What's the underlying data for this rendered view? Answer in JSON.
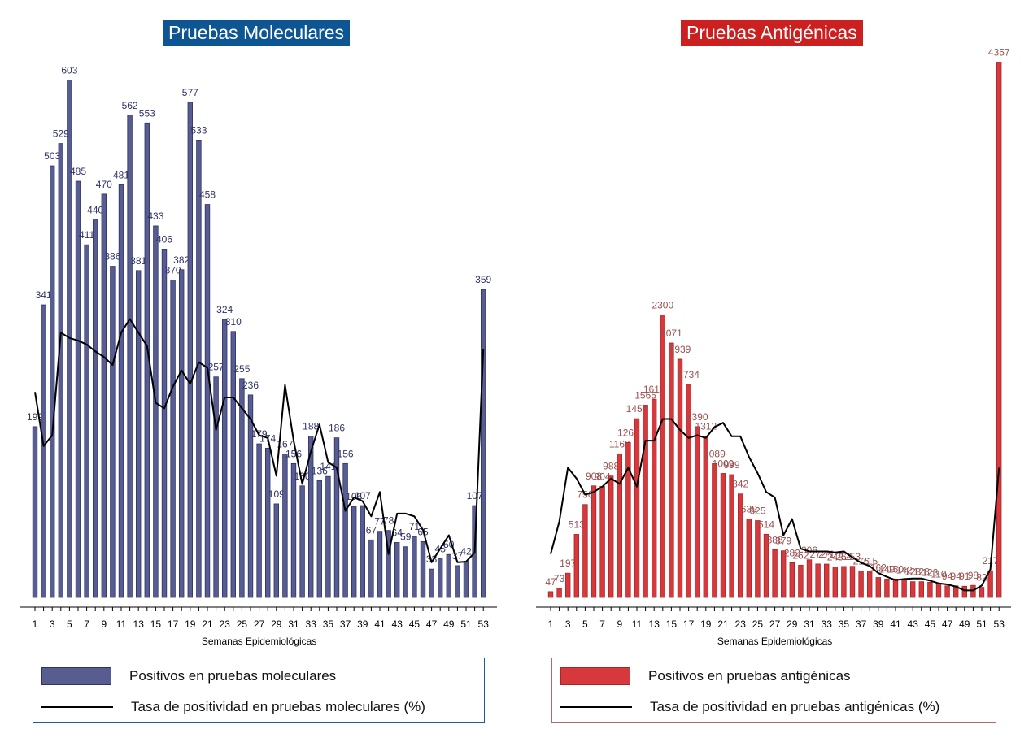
{
  "charts": [
    {
      "id": "molecular",
      "title": "Pruebas Moleculares",
      "title_bg": "#0d5593",
      "bar_color": "#575c91",
      "bar_border": "#2e3268",
      "label_color": "#2e3268",
      "legend_border": "#1f5b9a",
      "legend": {
        "bars": "Positivos en pruebas moleculares",
        "line": "Tasa de positividad en pruebas moleculares (%)"
      }
    },
    {
      "id": "antigen",
      "title": "Pruebas Antigénicas",
      "title_bg": "#cc1f1f",
      "bar_color": "#d7383c",
      "bar_border": "#a82528",
      "label_color": "#9b5150",
      "legend_border": "#b56a6a",
      "legend": {
        "bars": "Positivos en pruebas antigénicas",
        "line": "Tasa de positividad en pruebas antigénicas (%)"
      }
    }
  ],
  "chart_data": [
    {
      "type": "bar",
      "title": "Pruebas Moleculares",
      "xlabel": "Semanas Epidemiológicas",
      "ylabel": "",
      "x_ticks": [
        "1",
        "3",
        "5",
        "7",
        "9",
        "11",
        "13",
        "15",
        "17",
        "19",
        "21",
        "23",
        "25",
        "27",
        "29",
        "31",
        "33",
        "35",
        "37",
        "39",
        "41",
        "43",
        "45",
        "47",
        "49",
        "51",
        "53"
      ],
      "categories": [
        1,
        2,
        3,
        4,
        5,
        6,
        7,
        8,
        9,
        10,
        11,
        12,
        13,
        14,
        15,
        16,
        17,
        18,
        19,
        20,
        21,
        22,
        23,
        24,
        25,
        26,
        27,
        28,
        29,
        30,
        31,
        32,
        33,
        34,
        35,
        36,
        37,
        38,
        39,
        40,
        41,
        42,
        43,
        44,
        45,
        46,
        47,
        48,
        49,
        50,
        51,
        52,
        53
      ],
      "ylim": [
        0,
        630
      ],
      "grid": false,
      "legend_position": "bottom",
      "series": [
        {
          "name": "Positivos en pruebas moleculares",
          "type": "bar",
          "values": [
            199,
            341,
            503,
            529,
            603,
            485,
            411,
            440,
            470,
            386,
            481,
            562,
            381,
            553,
            433,
            406,
            370,
            382,
            577,
            533,
            458,
            257,
            324,
            310,
            255,
            236,
            179,
            174,
            109,
            167,
            156,
            130,
            188,
            136,
            141,
            186,
            156,
            106,
            107,
            67,
            77,
            78,
            64,
            59,
            71,
            65,
            33,
            45,
            50,
            37,
            42,
            107,
            359
          ]
        },
        {
          "name": "Tasa de positividad en pruebas moleculares (%)",
          "type": "line",
          "ylim": [
            0,
            100
          ],
          "values": [
            38,
            28,
            30,
            49,
            48,
            47.5,
            46.8,
            45.5,
            44.5,
            43,
            49,
            51.5,
            49,
            46.5,
            36,
            35,
            39,
            42,
            39.5,
            43.5,
            42.5,
            31,
            37,
            37,
            35,
            33,
            30,
            29.5,
            22.5,
            39.3,
            29,
            21,
            27,
            32,
            25,
            24,
            16,
            18.5,
            17.8,
            15,
            19.5,
            8,
            15.5,
            15.5,
            15,
            12.5,
            6.5,
            9,
            11.5,
            6.5,
            6.6,
            8.3,
            46
          ]
        }
      ]
    },
    {
      "type": "bar",
      "title": "Pruebas Antigénicas",
      "xlabel": "Semanas Epidemiológicas",
      "ylabel": "",
      "x_ticks": [
        "1",
        "3",
        "5",
        "7",
        "9",
        "11",
        "13",
        "15",
        "17",
        "19",
        "21",
        "23",
        "25",
        "27",
        "29",
        "31",
        "33",
        "35",
        "37",
        "39",
        "41",
        "43",
        "45",
        "47",
        "49",
        "51",
        "53"
      ],
      "categories": [
        1,
        2,
        3,
        4,
        5,
        6,
        7,
        8,
        9,
        10,
        11,
        12,
        13,
        14,
        15,
        16,
        17,
        18,
        19,
        20,
        21,
        22,
        23,
        24,
        25,
        26,
        27,
        28,
        29,
        30,
        31,
        32,
        33,
        34,
        35,
        36,
        37,
        38,
        39,
        40,
        41,
        42,
        43,
        44,
        45,
        46,
        47,
        48,
        49,
        50,
        51,
        52,
        53
      ],
      "ylim": [
        0,
        4400
      ],
      "grid": false,
      "legend_position": "bottom",
      "series": [
        {
          "name": "Positivos en pruebas antigénicas",
          "type": "bar",
          "values": [
            47,
            73,
            197,
            513,
            756,
            908,
            904,
            988,
            1169,
            1261,
            1455,
            1565,
            1613,
            2300,
            2071,
            1939,
            1734,
            1390,
            1312,
            1089,
            1009,
            999,
            842,
            639,
            625,
            514,
            388,
            379,
            282,
            262,
            306,
            272,
            271,
            248,
            252,
            253,
            216,
            215,
            162,
            149,
            150,
            142,
            128,
            128,
            123,
            110,
            94,
            94,
            91,
            98,
            82,
            217,
            4357
          ]
        },
        {
          "name": "Tasa de positividad en pruebas antigénicas (%)",
          "type": "line",
          "ylim": [
            0,
            100
          ],
          "values": [
            8,
            14,
            24,
            22,
            19,
            19.5,
            20.5,
            22,
            21,
            24,
            20.5,
            29,
            29,
            33,
            33,
            31,
            29.5,
            30,
            29.5,
            31.5,
            32.3,
            29.8,
            29.8,
            26,
            23,
            19.5,
            18.5,
            11.5,
            14.5,
            9,
            8.5,
            8.5,
            8.5,
            8.3,
            8.5,
            7.4,
            6.4,
            5.8,
            4.5,
            3.8,
            3.2,
            3.4,
            3.5,
            3.5,
            3.1,
            2.6,
            2.4,
            2.0,
            1.3,
            1.3,
            2.2,
            5.2,
            24
          ]
        }
      ]
    }
  ]
}
